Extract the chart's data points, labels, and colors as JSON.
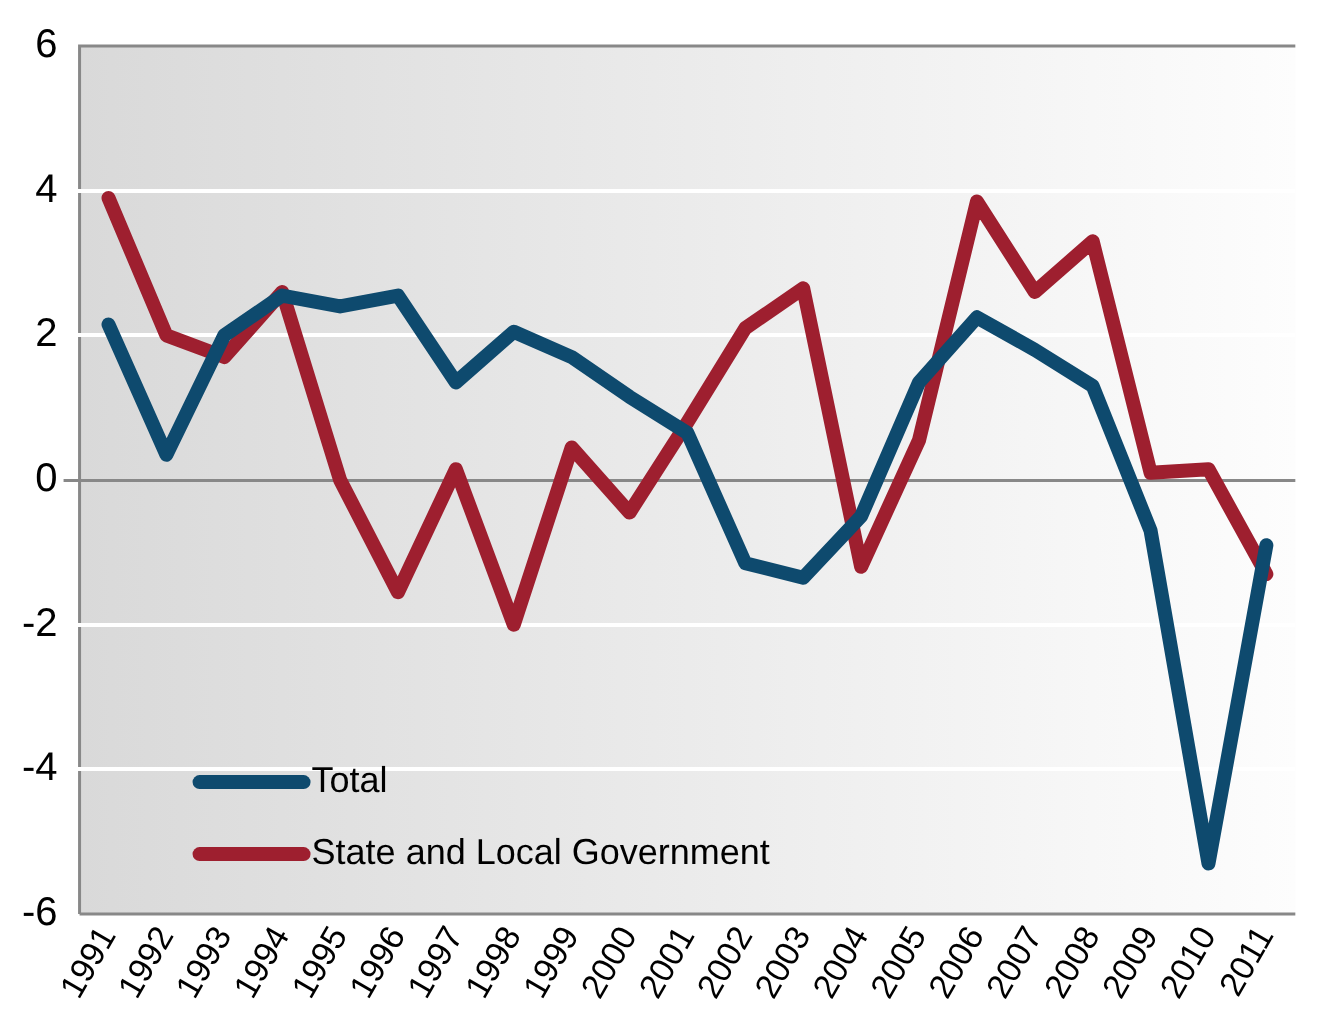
{
  "chart_data": {
    "type": "line",
    "categories": [
      "1991",
      "1992",
      "1993",
      "1994",
      "1995",
      "1996",
      "1997",
      "1998",
      "1999",
      "2000",
      "2001",
      "2002",
      "2003",
      "2004",
      "2005",
      "2006",
      "2007",
      "2008",
      "2009",
      "2010",
      "2011"
    ],
    "series": [
      {
        "name": "Total",
        "color": "#0e4a6e",
        "values": [
          2.15,
          0.35,
          2.0,
          2.55,
          2.4,
          2.55,
          1.35,
          2.05,
          1.7,
          1.15,
          0.65,
          -1.15,
          -1.35,
          -0.5,
          1.35,
          2.25,
          1.8,
          1.3,
          -0.7,
          -5.3,
          -0.9
        ]
      },
      {
        "name": "State and Local Government",
        "color": "#9e1f2f",
        "values": [
          3.9,
          2.0,
          1.7,
          2.6,
          0.0,
          -1.55,
          0.15,
          -2.0,
          0.45,
          -0.45,
          0.8,
          2.1,
          2.65,
          -1.2,
          0.55,
          3.85,
          2.6,
          3.3,
          0.1,
          0.15,
          -1.3
        ]
      }
    ],
    "ylim": [
      -6,
      6
    ],
    "yticks": [
      -6,
      -4,
      -2,
      0,
      2,
      4,
      6
    ],
    "grid": "y",
    "legend": "bottom left",
    "marker": "none",
    "line_style": "solid"
  }
}
